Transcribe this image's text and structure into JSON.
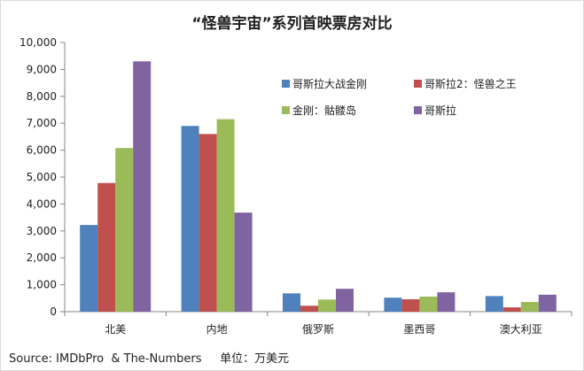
{
  "chart_data": {
    "type": "bar",
    "title": "“怪兽宇宙”系列首映票房对比",
    "categories": [
      "北美",
      "内地",
      "俄罗斯",
      "墨西哥",
      "澳大利亚"
    ],
    "series": [
      {
        "name": "哥斯拉大战金刚",
        "values": [
          3220,
          6900,
          680,
          520,
          580
        ],
        "color": "#4f81bd"
      },
      {
        "name": "哥斯拉2：怪兽之王",
        "values": [
          4780,
          6600,
          220,
          460,
          160
        ],
        "color": "#c0504d"
      },
      {
        "name": "金刚：骷髅岛",
        "values": [
          6080,
          7150,
          450,
          560,
          360
        ],
        "color": "#9bbb59"
      },
      {
        "name": "哥斯拉",
        "values": [
          9300,
          3680,
          850,
          720,
          630
        ],
        "color": "#8064a2"
      }
    ],
    "ylim": [
      0,
      10000
    ],
    "yticks": [
      "0",
      "1,000",
      "2,000",
      "3,000",
      "4,000",
      "5,000",
      "6,000",
      "7,000",
      "8,000",
      "9,000",
      "10,000"
    ],
    "grid": false,
    "legend_position": "top-right"
  },
  "footer": {
    "text": "Source: IMDbPro  & The-Numbers     单位：万美元"
  }
}
